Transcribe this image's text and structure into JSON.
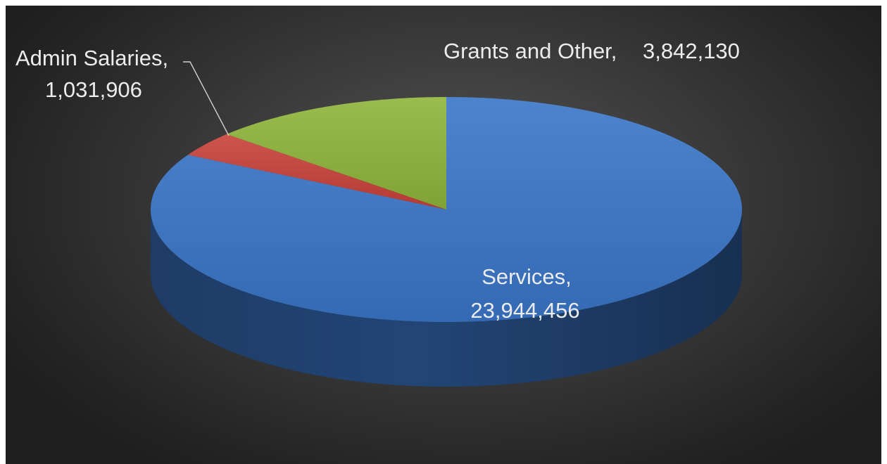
{
  "chart_data": {
    "type": "pie",
    "variant": "3d",
    "title": "",
    "start_angle_deg": 90,
    "direction": "clockwise",
    "slices": [
      {
        "name": "Services",
        "value": 23944456,
        "label_name": "Services,",
        "label_value": "23,944,456",
        "color": "#3a76c8"
      },
      {
        "name": "Admin Salaries",
        "value": 1031906,
        "label_name": "Admin Salaries,",
        "label_value": "1,031,906",
        "color": "#c8413a"
      },
      {
        "name": "Grants and Other",
        "value": 3842130,
        "label_name": "Grants and Other,",
        "label_value": "3,842,130",
        "color": "#8fb43a"
      }
    ],
    "background": "#3c3c3c",
    "label_color": "#ececec"
  }
}
